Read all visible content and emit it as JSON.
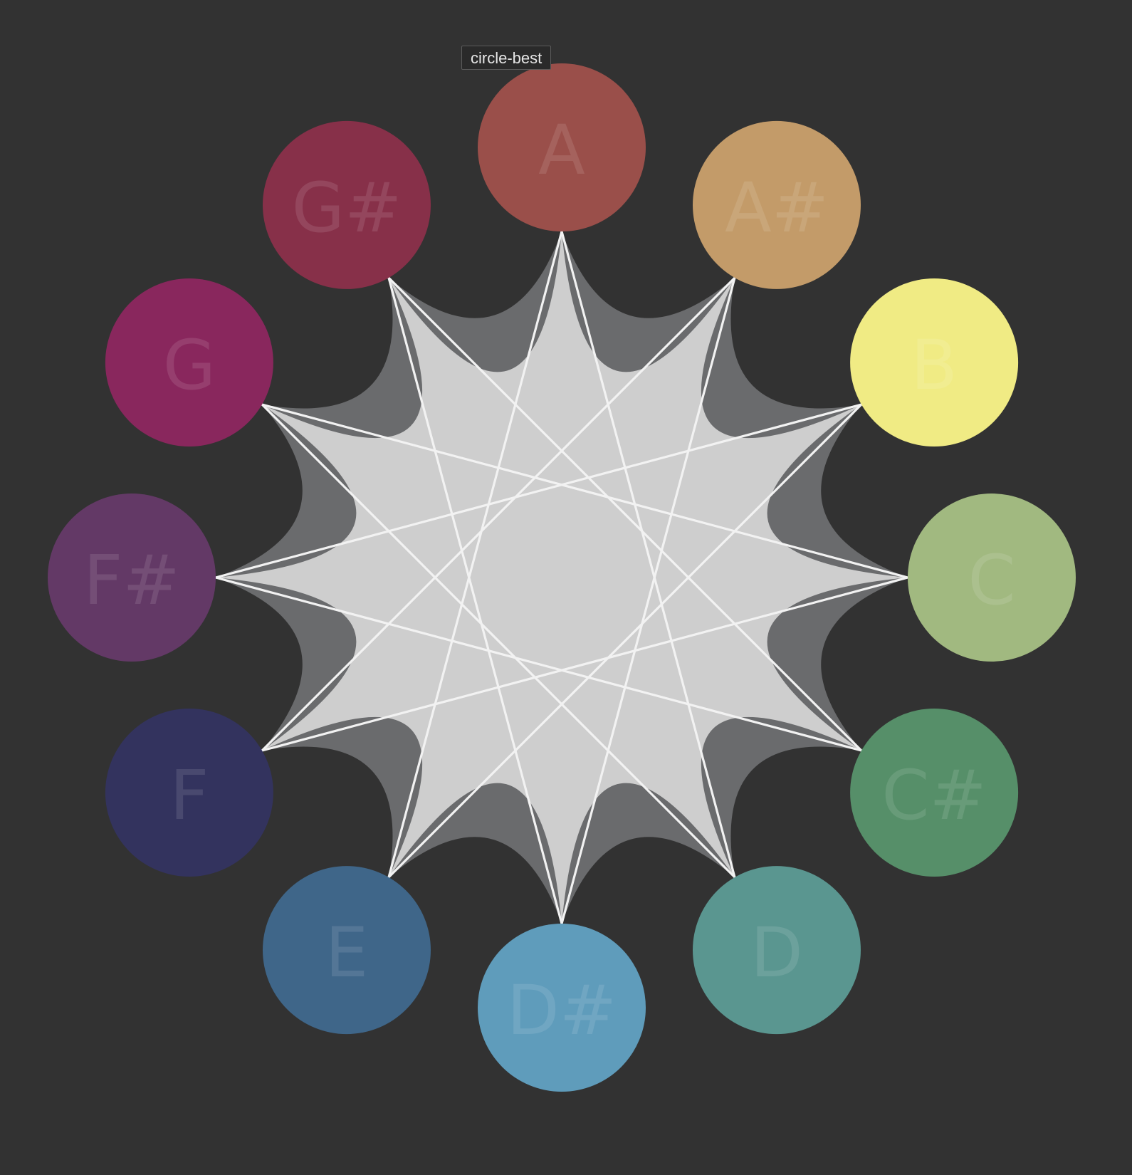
{
  "tooltip": {
    "text": "circle-best"
  },
  "chart_data": {
    "type": "network",
    "notes": [
      {
        "label": "A",
        "color": "#9a4f4a"
      },
      {
        "label": "A#",
        "color": "#c39b69"
      },
      {
        "label": "B",
        "color": "#f0eb84"
      },
      {
        "label": "C",
        "color": "#a1b980"
      },
      {
        "label": "C#",
        "color": "#568f69"
      },
      {
        "label": "D",
        "color": "#5a9690"
      },
      {
        "label": "D#",
        "color": "#5f9cbb"
      },
      {
        "label": "E",
        "color": "#3f6689"
      },
      {
        "label": "F",
        "color": "#33335e"
      },
      {
        "label": "F#",
        "color": "#633966"
      },
      {
        "label": "G",
        "color": "#89275d"
      },
      {
        "label": "G#",
        "color": "#873049"
      }
    ],
    "edges": [
      [
        "A",
        "D"
      ],
      [
        "A",
        "E"
      ],
      [
        "A#",
        "D#"
      ],
      [
        "A#",
        "F"
      ],
      [
        "B",
        "E"
      ],
      [
        "B",
        "F#"
      ],
      [
        "C",
        "F"
      ],
      [
        "C",
        "G"
      ],
      [
        "C#",
        "F#"
      ],
      [
        "C#",
        "G#"
      ],
      [
        "D",
        "G"
      ],
      [
        "D#",
        "G#"
      ]
    ],
    "line_color": "#f2f2f2",
    "fill_light": "#cecece",
    "fill_mid": "#a7a8aa",
    "fill_dark": "#6a6b6d"
  }
}
